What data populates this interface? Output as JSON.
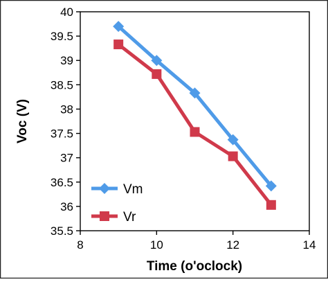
{
  "chart_data": {
    "type": "line",
    "title": "",
    "xlabel": "Time (o'oclock)",
    "ylabel": "Voc (V)",
    "xlim": [
      8,
      14
    ],
    "ylim": [
      35.5,
      40
    ],
    "xticks": [
      "8",
      "10",
      "12",
      "14"
    ],
    "yticks": [
      "35.5",
      "36",
      "36.5",
      "37",
      "37.5",
      "38",
      "38.5",
      "39",
      "39.5",
      "40"
    ],
    "grid": false,
    "legend_position": "bottom-left",
    "series": [
      {
        "name": "Vm",
        "marker": "diamond",
        "color": "#4F9BE8",
        "x": [
          9,
          10,
          11,
          12,
          13
        ],
        "y": [
          39.7,
          39.0,
          38.33,
          37.37,
          36.42
        ]
      },
      {
        "name": "Vr",
        "marker": "square",
        "color": "#D03A4B",
        "x": [
          9,
          10,
          11,
          12,
          13
        ],
        "y": [
          39.33,
          38.72,
          37.53,
          37.03,
          36.03
        ]
      }
    ]
  }
}
